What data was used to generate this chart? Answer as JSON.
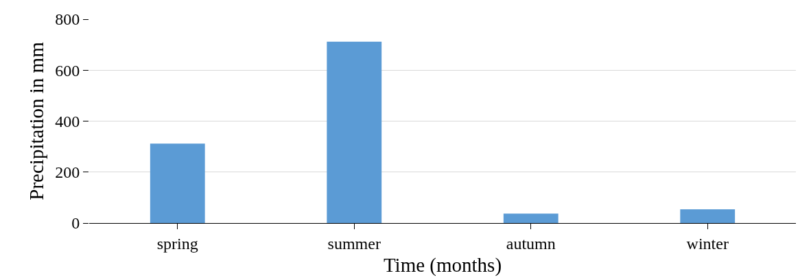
{
  "chart_data": {
    "type": "bar",
    "xlabel": "Time (months)",
    "ylabel": "Precipitation in mm",
    "categories": [
      "spring",
      "summer",
      "autumn",
      "winter"
    ],
    "values": [
      312,
      712,
      37,
      54
    ],
    "color": "#5b9bd5",
    "ylim": [
      0,
      800
    ],
    "yticks": [
      0,
      200,
      400,
      600,
      800
    ],
    "grid": "y",
    "legend": false
  }
}
